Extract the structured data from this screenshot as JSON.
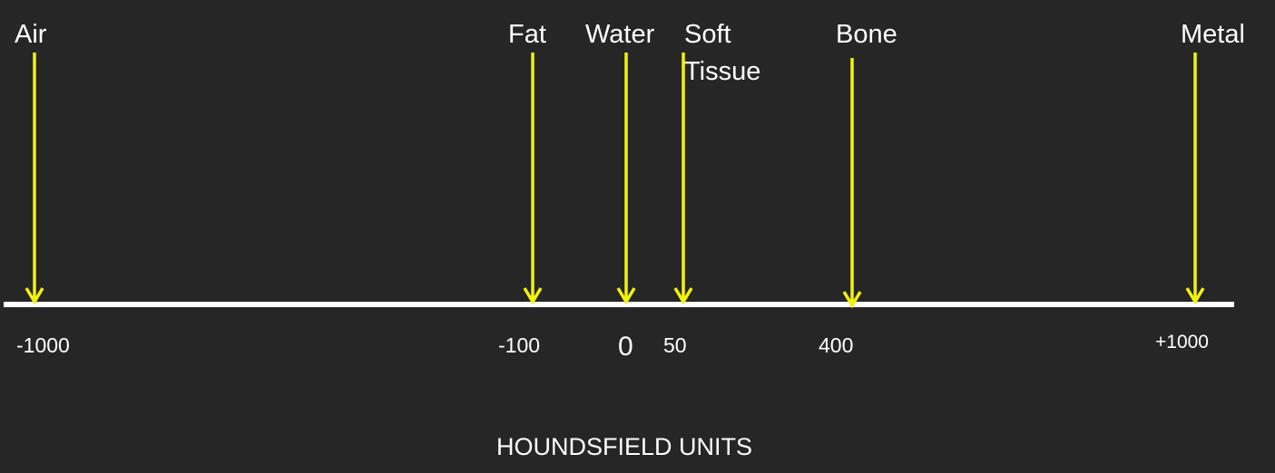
{
  "markers": [
    {
      "label": "Air",
      "hu": "-1000"
    },
    {
      "label": "Fat",
      "hu": "-100"
    },
    {
      "label": "Water",
      "hu": "0"
    },
    {
      "label": "Soft\nTissue",
      "hu": "50"
    },
    {
      "label": "Bone",
      "hu": "400"
    },
    {
      "label": "Metal",
      "hu": "+1000"
    }
  ],
  "axis_title": "HOUNDSFIELD UNITS",
  "colors": {
    "background": "#262626",
    "arrow": "#f2f20a",
    "axis": "#ffffff",
    "text": "#ffffff"
  }
}
